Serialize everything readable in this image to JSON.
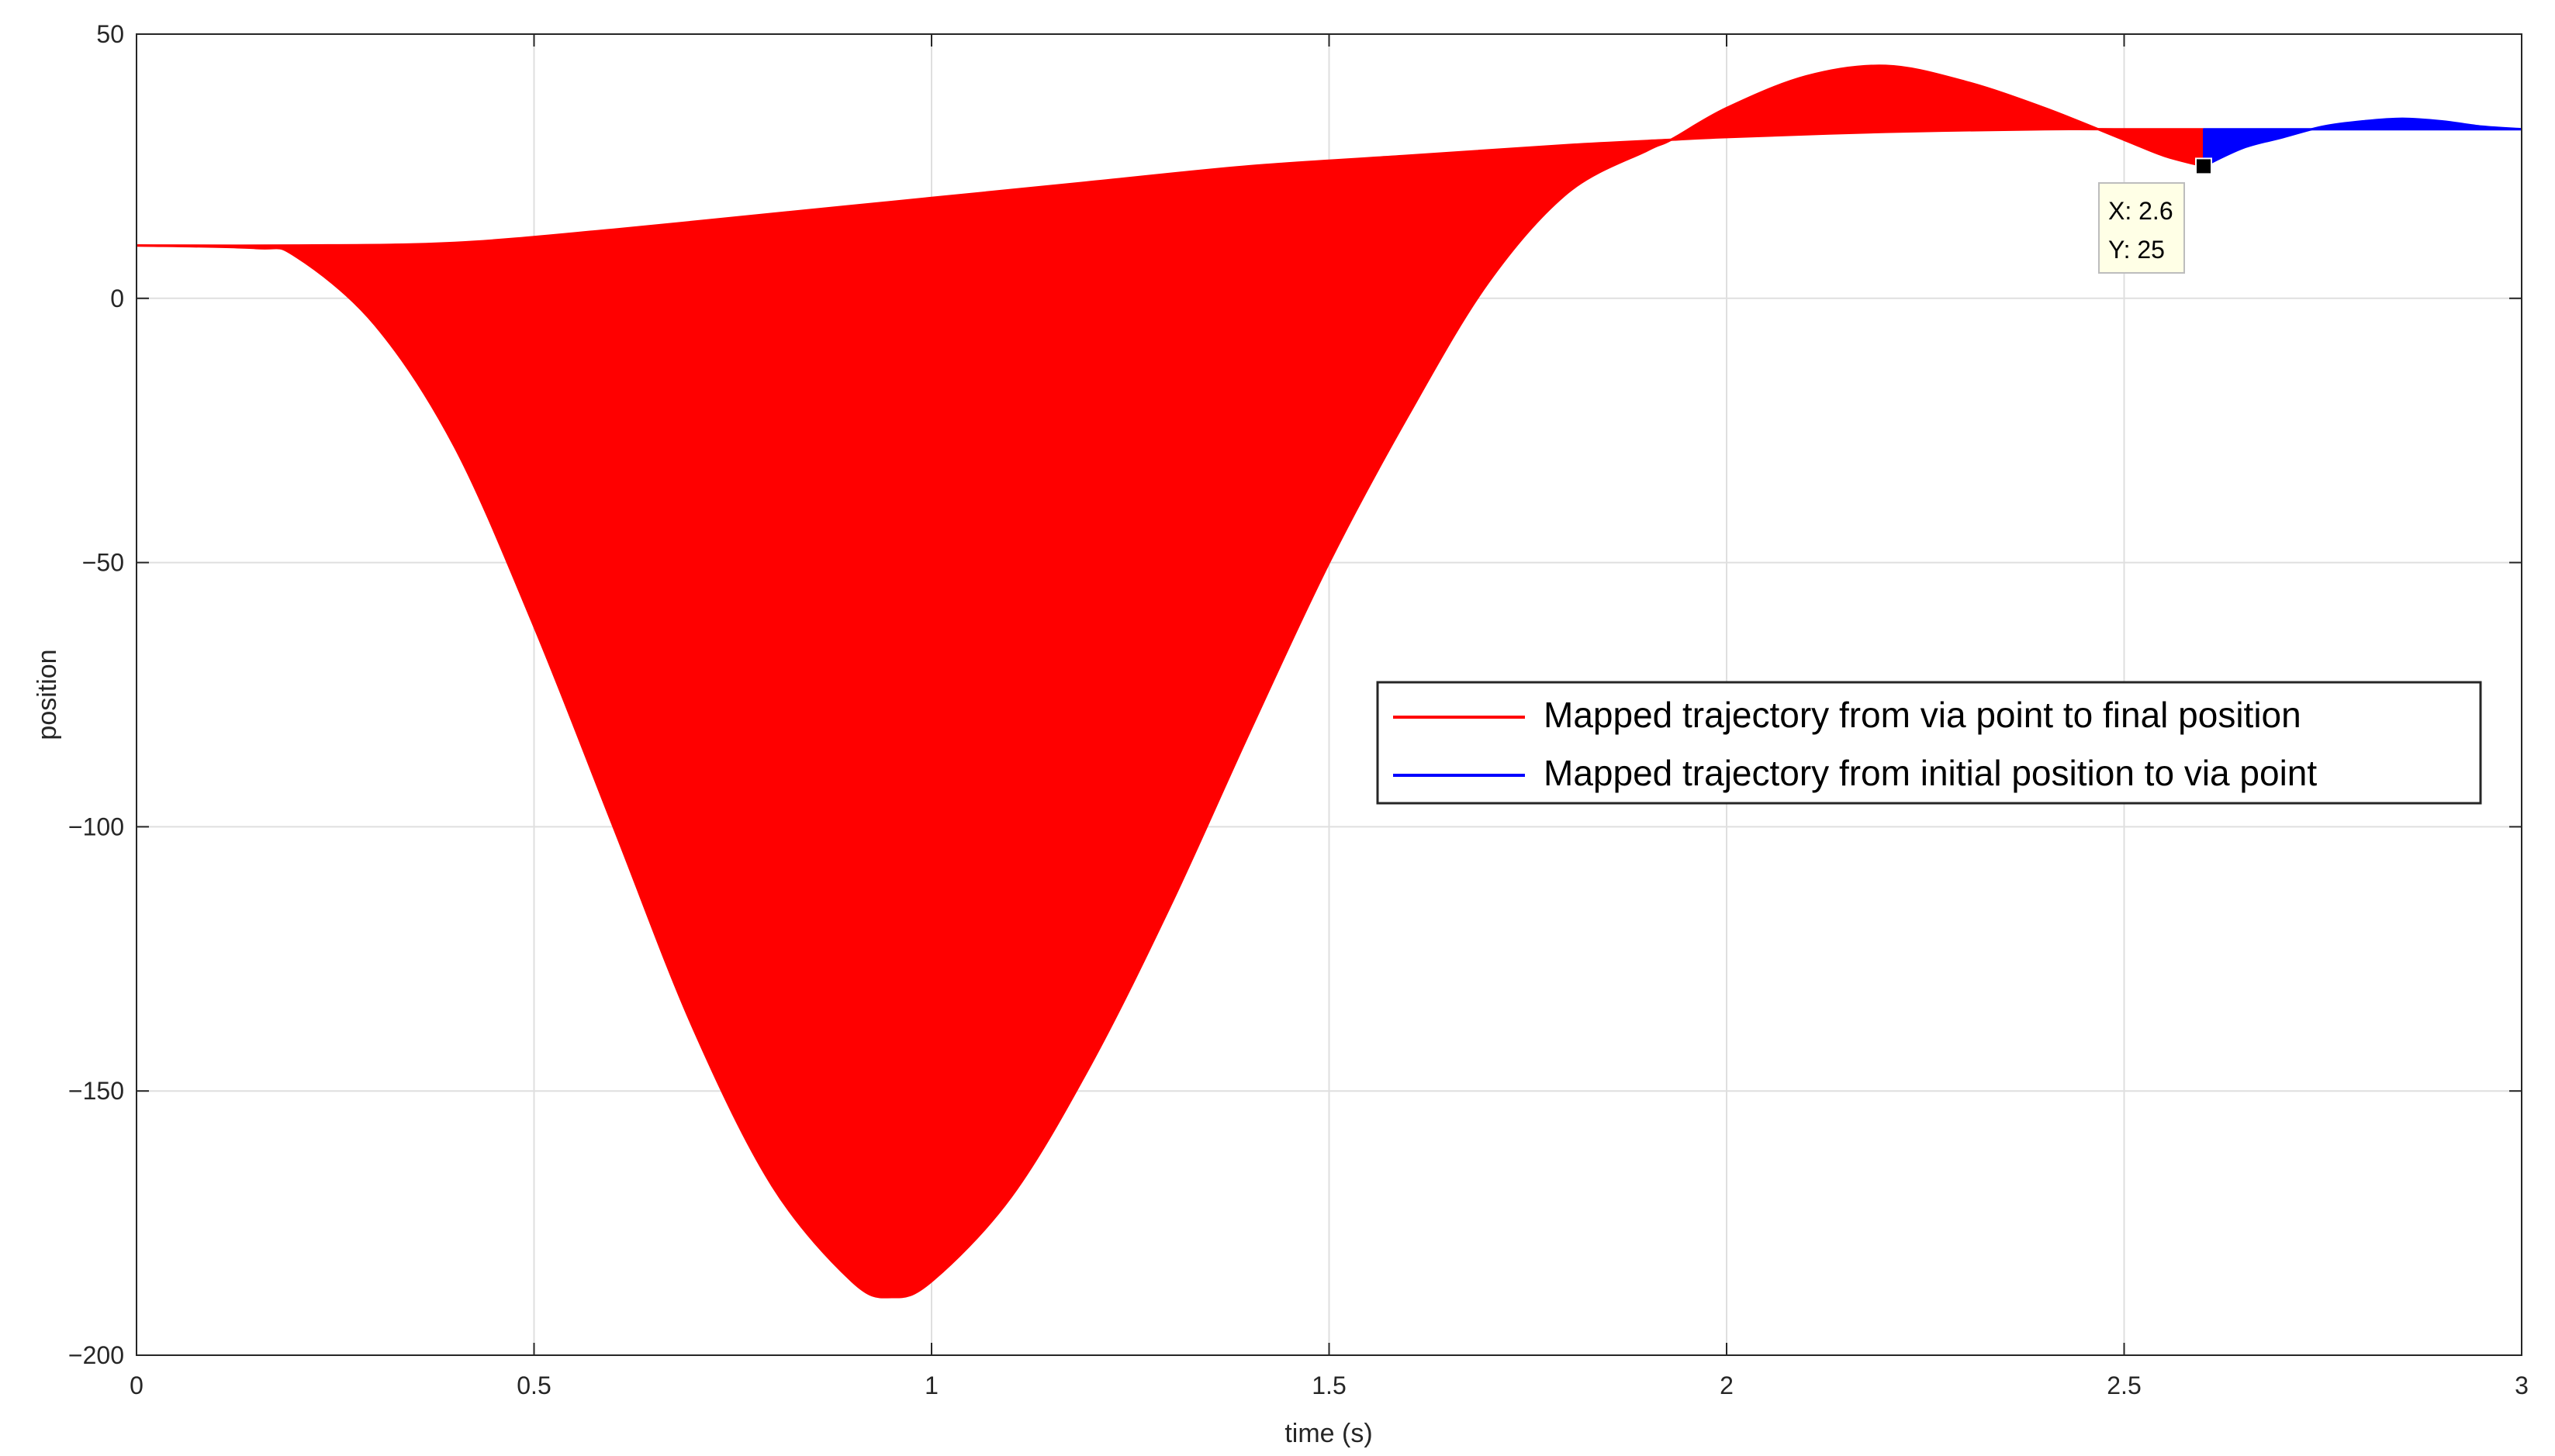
{
  "chart_data": {
    "type": "line",
    "xlabel": "time (s)",
    "ylabel": "position",
    "xlim": [
      0,
      3
    ],
    "ylim": [
      -200,
      50
    ],
    "xticks": [
      0,
      0.5,
      1,
      1.5,
      2,
      2.5,
      3
    ],
    "xtick_labels": [
      "0",
      "0.5",
      "1",
      "1.5",
      "2",
      "2.5",
      "3"
    ],
    "yticks": [
      50,
      0,
      -50,
      -100,
      -150,
      -200
    ],
    "ytick_labels": [
      "50",
      "0",
      "−50",
      "−100",
      "−150",
      "−200"
    ],
    "grid": true,
    "legend_position": "center-right",
    "series": [
      {
        "name": "Mapped trajectory from via point to final position",
        "color": "#ff0000",
        "description_of_fill": "family of curves; envelope bounded by upper and lower traces",
        "upper_envelope": {
          "x": [
            0,
            0.2,
            0.4,
            0.6,
            0.8,
            1.0,
            1.2,
            1.4,
            1.6,
            1.8,
            1.93,
            2.0,
            2.2,
            2.4,
            2.5,
            2.6
          ],
          "y": [
            10,
            10,
            10.5,
            13,
            16,
            19,
            22,
            25,
            27,
            29,
            30,
            30.5,
            31.5,
            32,
            32,
            32
          ]
        },
        "lower_envelope": {
          "x": [
            0,
            0.15,
            0.2,
            0.3,
            0.4,
            0.5,
            0.6,
            0.7,
            0.8,
            0.9,
            0.95,
            1.0,
            1.1,
            1.2,
            1.3,
            1.4,
            1.5,
            1.6,
            1.7,
            1.8,
            1.9,
            1.93,
            2.0,
            2.1,
            2.2,
            2.3,
            2.4,
            2.5,
            2.55,
            2.6
          ],
          "y": [
            10,
            9.5,
            8,
            -5,
            -28,
            -62,
            -100,
            -138,
            -168,
            -186,
            -189,
            -186,
            -170,
            -145,
            -115,
            -82,
            -50,
            -22,
            3,
            20,
            28,
            30,
            36,
            42,
            44,
            41,
            36,
            30,
            27,
            25
          ]
        }
      },
      {
        "name": "Mapped trajectory from initial position to via point",
        "color": "#0000ff",
        "upper_envelope": {
          "x": [
            2.6,
            2.7,
            2.8,
            2.9,
            3.0
          ],
          "y": [
            32,
            32,
            32,
            32,
            32
          ]
        },
        "lower_envelope": {
          "x": [
            2.6,
            2.65,
            2.7,
            2.75,
            2.8,
            2.85,
            2.9,
            2.95,
            3.0
          ],
          "y": [
            25,
            28.5,
            30.5,
            32.5,
            33.5,
            34,
            33.5,
            32.5,
            32
          ]
        }
      }
    ],
    "datatip": {
      "x": 2.6,
      "y": 25,
      "line1": "X: 2.6",
      "line2": "Y: 25"
    }
  }
}
